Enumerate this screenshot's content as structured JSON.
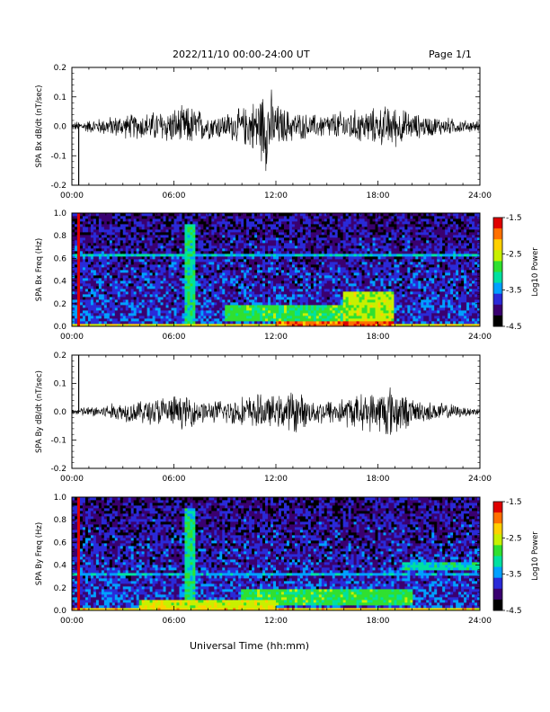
{
  "header": {
    "date_range": "2022/11/10  00:00-24:00 UT",
    "page": "Page 1/1"
  },
  "x_axis_title": "Universal Time (hh:mm)",
  "colorbar": {
    "label": "Log10 Power",
    "ticks": [
      "-1.5",
      "-2.5",
      "-3.5",
      "-4.5"
    ],
    "range": [
      -4.5,
      -1.5
    ],
    "colors": [
      "#000000",
      "#3a0070",
      "#2a2ad8",
      "#00a0ff",
      "#00e0a0",
      "#30e030",
      "#c8f000",
      "#ffd000",
      "#ff7000",
      "#e00000"
    ]
  },
  "chart_data": [
    {
      "type": "line",
      "ylabel": "SPA Bx dB/dt (nT/sec)",
      "x_ticks": [
        "00:00",
        "06:00",
        "12:00",
        "18:00",
        "24:00"
      ],
      "y_ticks": [
        "0.2",
        "0.1",
        "0.0",
        "-0.1",
        "-0.2"
      ],
      "xlim": [
        0,
        24
      ],
      "ylim": [
        -0.2,
        0.2
      ],
      "series": [
        {
          "x": [
            0,
            0.3,
            0.5,
            1,
            2,
            3,
            4,
            5,
            6,
            7,
            8,
            9,
            10,
            10.5,
            11,
            11.5,
            12,
            12.5,
            13,
            14,
            15,
            16,
            17,
            18,
            18.5,
            19,
            20,
            21,
            22,
            23,
            24
          ],
          "envelope": [
            0.015,
            0.02,
            0.02,
            0.025,
            0.035,
            0.045,
            0.05,
            0.06,
            0.07,
            0.08,
            0.05,
            0.05,
            0.07,
            0.09,
            0.12,
            0.18,
            0.09,
            0.07,
            0.06,
            0.045,
            0.05,
            0.06,
            0.065,
            0.07,
            0.08,
            0.08,
            0.05,
            0.04,
            0.035,
            0.025,
            0.02
          ],
          "spike": {
            "x": 0.4,
            "y": -0.2
          }
        }
      ]
    },
    {
      "type": "heatmap",
      "ylabel": "SPA Bx Freq (Hz)",
      "x_ticks": [
        "00:00",
        "06:00",
        "12:00",
        "18:00",
        "24:00"
      ],
      "y_ticks": [
        "1.0",
        "0.8",
        "0.6",
        "0.4",
        "0.2",
        "0.0"
      ],
      "xlim": [
        0,
        24
      ],
      "ylim": [
        0,
        1.0
      ],
      "noise_level": -3.9,
      "bands": [
        {
          "x0": 0,
          "x1": 24,
          "f0": 0.0,
          "f1": 0.03,
          "level": -2.4
        },
        {
          "x0": 12,
          "x1": 19,
          "f0": 0.0,
          "f1": 0.04,
          "level": -1.9
        },
        {
          "x0": 6.7,
          "x1": 7.3,
          "f0": 0.0,
          "f1": 0.9,
          "level": -3.1
        },
        {
          "x0": 9,
          "x1": 19,
          "f0": 0.04,
          "f1": 0.2,
          "level": -2.9
        },
        {
          "x0": 16,
          "x1": 19,
          "f0": 0.05,
          "f1": 0.32,
          "level": -2.6
        },
        {
          "x0": 0,
          "x1": 24,
          "f0": 0.62,
          "f1": 0.64,
          "level": -3.3
        },
        {
          "x0": 0.3,
          "x1": 0.5,
          "f0": 0.0,
          "f1": 1.0,
          "level": -1.5
        }
      ]
    },
    {
      "type": "line",
      "ylabel": "SPA By dB/dt (nT/sec)",
      "x_ticks": [
        "00:00",
        "06:00",
        "12:00",
        "18:00",
        "24:00"
      ],
      "y_ticks": [
        "0.2",
        "0.1",
        "0.0",
        "-0.1",
        "-0.2"
      ],
      "xlim": [
        0,
        24
      ],
      "ylim": [
        -0.2,
        0.2
      ],
      "series": [
        {
          "x": [
            0,
            0.3,
            0.5,
            1,
            2,
            3,
            4,
            5,
            6,
            7,
            8,
            9,
            10,
            11,
            12,
            12.5,
            13,
            14,
            15,
            16,
            17,
            18,
            18.5,
            19,
            20,
            21,
            22,
            23,
            24
          ],
          "envelope": [
            0.01,
            0.015,
            0.02,
            0.02,
            0.03,
            0.04,
            0.045,
            0.06,
            0.065,
            0.06,
            0.04,
            0.05,
            0.06,
            0.07,
            0.06,
            0.07,
            0.09,
            0.05,
            0.05,
            0.06,
            0.07,
            0.08,
            0.11,
            0.1,
            0.05,
            0.04,
            0.035,
            0.02,
            0.02
          ],
          "spike": {
            "x": 0.4,
            "y": 0.2
          }
        }
      ]
    },
    {
      "type": "heatmap",
      "ylabel": "SPA By Freq (Hz)",
      "x_ticks": [
        "00:00",
        "06:00",
        "12:00",
        "18:00",
        "24:00"
      ],
      "y_ticks": [
        "1.0",
        "0.8",
        "0.6",
        "0.4",
        "0.2",
        "0.0"
      ],
      "xlim": [
        0,
        24
      ],
      "ylim": [
        0,
        1.0
      ],
      "noise_level": -3.9,
      "bands": [
        {
          "x0": 0,
          "x1": 24,
          "f0": 0.0,
          "f1": 0.03,
          "level": -2.3
        },
        {
          "x0": 4,
          "x1": 12,
          "f0": 0.0,
          "f1": 0.1,
          "level": -2.5
        },
        {
          "x0": 6.7,
          "x1": 7.3,
          "f0": 0.0,
          "f1": 0.9,
          "level": -3.1
        },
        {
          "x0": 10,
          "x1": 20,
          "f0": 0.04,
          "f1": 0.2,
          "level": -2.9
        },
        {
          "x0": 19.5,
          "x1": 24,
          "f0": 0.35,
          "f1": 0.42,
          "level": -3.2
        },
        {
          "x0": 0,
          "x1": 24,
          "f0": 0.32,
          "f1": 0.34,
          "level": -3.4
        },
        {
          "x0": 0.3,
          "x1": 0.5,
          "f0": 0.0,
          "f1": 1.0,
          "level": -1.5
        }
      ]
    }
  ]
}
